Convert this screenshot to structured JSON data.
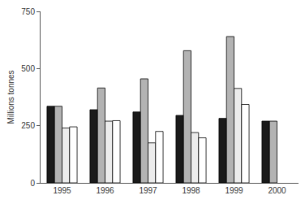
{
  "chart_data": {
    "type": "bar",
    "y_label": "Millions tonnes",
    "categories": [
      "1995",
      "1996",
      "1997",
      "1998",
      "1999",
      "2000"
    ],
    "series": [
      {
        "color": "#1a1a1a",
        "values": [
          335,
          320,
          310,
          295,
          282,
          270
        ]
      },
      {
        "color": "#b3b3b3",
        "values": [
          335,
          415,
          455,
          578,
          640,
          270
        ]
      },
      {
        "color": "#ececec",
        "values": [
          240,
          270,
          175,
          220,
          413,
          null
        ]
      },
      {
        "color": "#ffffff",
        "values": [
          245,
          272,
          225,
          197,
          343,
          null
        ]
      }
    ],
    "ylim": [
      0,
      750
    ],
    "yticks": [
      0,
      250,
      500,
      750
    ],
    "grid": false
  }
}
